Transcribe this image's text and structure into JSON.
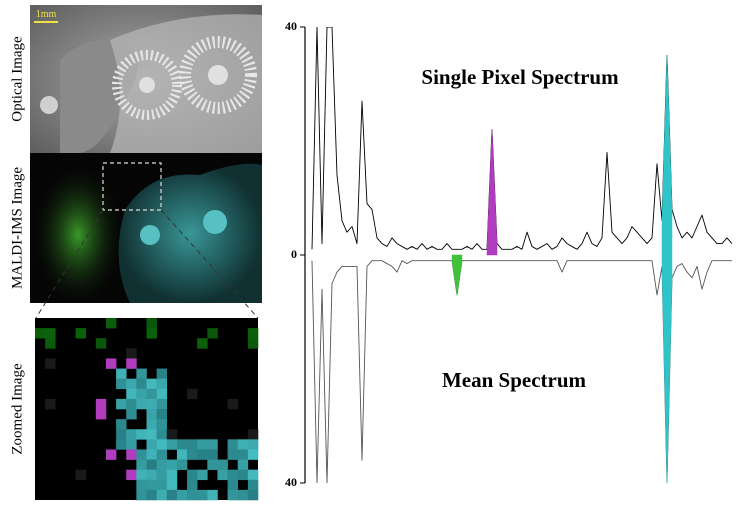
{
  "images": [
    {
      "label": "Optical Image"
    },
    {
      "label": "MALDI-IMS Image"
    },
    {
      "label": "Zoomed Image"
    }
  ],
  "scale_bar": "1mm",
  "chart_data": {
    "type": "line",
    "annotations": [
      "Single Pixel Spectrum",
      "Mean Spectrum"
    ],
    "ylim": [
      -40,
      40
    ],
    "yticks": [
      {
        "value": -40,
        "label": "40"
      },
      0,
      40
    ],
    "series": [
      {
        "color": "#000000",
        "values": [
          1,
          40,
          2,
          40,
          40,
          14,
          6,
          4,
          5,
          2,
          27,
          9,
          8,
          3,
          2,
          1.5,
          3,
          2,
          1.5,
          1,
          1.5,
          1,
          2,
          1,
          1.5,
          1,
          1,
          2,
          1,
          1,
          1,
          1.5,
          1,
          2,
          1,
          1,
          22,
          2,
          1,
          1,
          1,
          1.5,
          1,
          4,
          1.5,
          1,
          1.5,
          2,
          1,
          1.5,
          3,
          2,
          1.5,
          1,
          2,
          4,
          2,
          1.5,
          3,
          18,
          4,
          3,
          2,
          3,
          5,
          4,
          3,
          2,
          3,
          16,
          6,
          35,
          8,
          5,
          3,
          4,
          3,
          5,
          7,
          4,
          3,
          2,
          2,
          3,
          2
        ]
      },
      {
        "color": "#555555",
        "values": [
          -1,
          -40,
          -6,
          -40,
          -5,
          -3,
          -2,
          -2,
          -2,
          -2,
          -36,
          -2,
          -1,
          -1,
          -1,
          -1.5,
          -2,
          -3,
          -1,
          -1.5,
          -1,
          -1,
          -1,
          -1,
          -1,
          -1,
          -1,
          -1,
          -1,
          -7,
          -1,
          -1,
          -1,
          -1,
          -1,
          -1,
          -1,
          -1,
          -1,
          -1,
          -1,
          -1,
          -1,
          -1,
          -1,
          -1,
          -1,
          -1,
          -1,
          -1,
          -3,
          -1,
          -1,
          -1,
          -1,
          -1,
          -1,
          -1,
          -1,
          -1,
          -1,
          -1,
          -1,
          -1,
          -1,
          -1,
          -1,
          -1,
          -1,
          -7,
          -2,
          -40,
          -4,
          -2,
          -1.5,
          -3,
          -4,
          -2,
          -6,
          -3,
          -1,
          -1,
          -1,
          -1,
          -1
        ]
      },
      {
        "color": "#b23cc0",
        "fill": true,
        "values": [
          null,
          null,
          null,
          null,
          null,
          null,
          null,
          null,
          null,
          null,
          null,
          null,
          null,
          null,
          null,
          null,
          null,
          null,
          null,
          null,
          null,
          null,
          null,
          null,
          null,
          null,
          null,
          null,
          null,
          null,
          null,
          null,
          null,
          null,
          null,
          1,
          22,
          2,
          null,
          null,
          null,
          null,
          null,
          null,
          null,
          null,
          null,
          null,
          null,
          null,
          null,
          null,
          null,
          null,
          null,
          null,
          null,
          null,
          null,
          null,
          null,
          null,
          null,
          null,
          null,
          null,
          null,
          null,
          null,
          null,
          null,
          null,
          null,
          null,
          null,
          null,
          null,
          null,
          null,
          null,
          null,
          null,
          null,
          null,
          null
        ]
      },
      {
        "color": "#2ec4c8",
        "fill": true,
        "values": [
          null,
          null,
          null,
          null,
          null,
          null,
          null,
          null,
          null,
          null,
          null,
          null,
          null,
          null,
          null,
          null,
          null,
          null,
          null,
          null,
          null,
          null,
          null,
          null,
          null,
          null,
          null,
          null,
          null,
          null,
          null,
          null,
          null,
          null,
          null,
          null,
          null,
          null,
          null,
          null,
          null,
          null,
          null,
          null,
          null,
          null,
          null,
          null,
          null,
          null,
          null,
          null,
          null,
          null,
          null,
          null,
          null,
          null,
          null,
          null,
          null,
          null,
          null,
          null,
          null,
          null,
          null,
          null,
          null,
          null,
          6,
          35,
          8,
          null,
          null,
          null,
          null,
          null,
          null,
          null,
          null,
          null,
          null,
          null,
          null
        ]
      },
      {
        "color": "#2ec4c8",
        "fill": true,
        "values": [
          null,
          null,
          null,
          null,
          null,
          null,
          null,
          null,
          null,
          null,
          null,
          null,
          null,
          null,
          null,
          null,
          null,
          null,
          null,
          null,
          null,
          null,
          null,
          null,
          null,
          null,
          null,
          null,
          null,
          null,
          null,
          null,
          null,
          null,
          null,
          null,
          null,
          null,
          null,
          null,
          null,
          null,
          null,
          null,
          null,
          null,
          null,
          null,
          null,
          null,
          null,
          null,
          null,
          null,
          null,
          null,
          null,
          null,
          null,
          null,
          null,
          null,
          null,
          null,
          null,
          null,
          null,
          null,
          null,
          null,
          -2,
          -40,
          -4,
          null,
          null,
          null,
          null,
          null,
          null,
          null,
          null,
          null,
          null,
          null,
          null
        ]
      },
      {
        "color": "#3fc23a",
        "fill": true,
        "values": [
          null,
          null,
          null,
          null,
          null,
          null,
          null,
          null,
          null,
          null,
          null,
          null,
          null,
          null,
          null,
          null,
          null,
          null,
          null,
          null,
          null,
          null,
          null,
          null,
          null,
          null,
          null,
          null,
          -1,
          -7,
          -1,
          null,
          null,
          null,
          null,
          null,
          null,
          null,
          null,
          null,
          null,
          null,
          null,
          null,
          null,
          null,
          null,
          null,
          null,
          null,
          null,
          null,
          null,
          null,
          null,
          null,
          null,
          null,
          null,
          null,
          null,
          null,
          null,
          null,
          null,
          null,
          null,
          null,
          null,
          null,
          null,
          null,
          null,
          null,
          null,
          null,
          null,
          null,
          null,
          null,
          null,
          null,
          null,
          null,
          null
        ]
      }
    ]
  }
}
